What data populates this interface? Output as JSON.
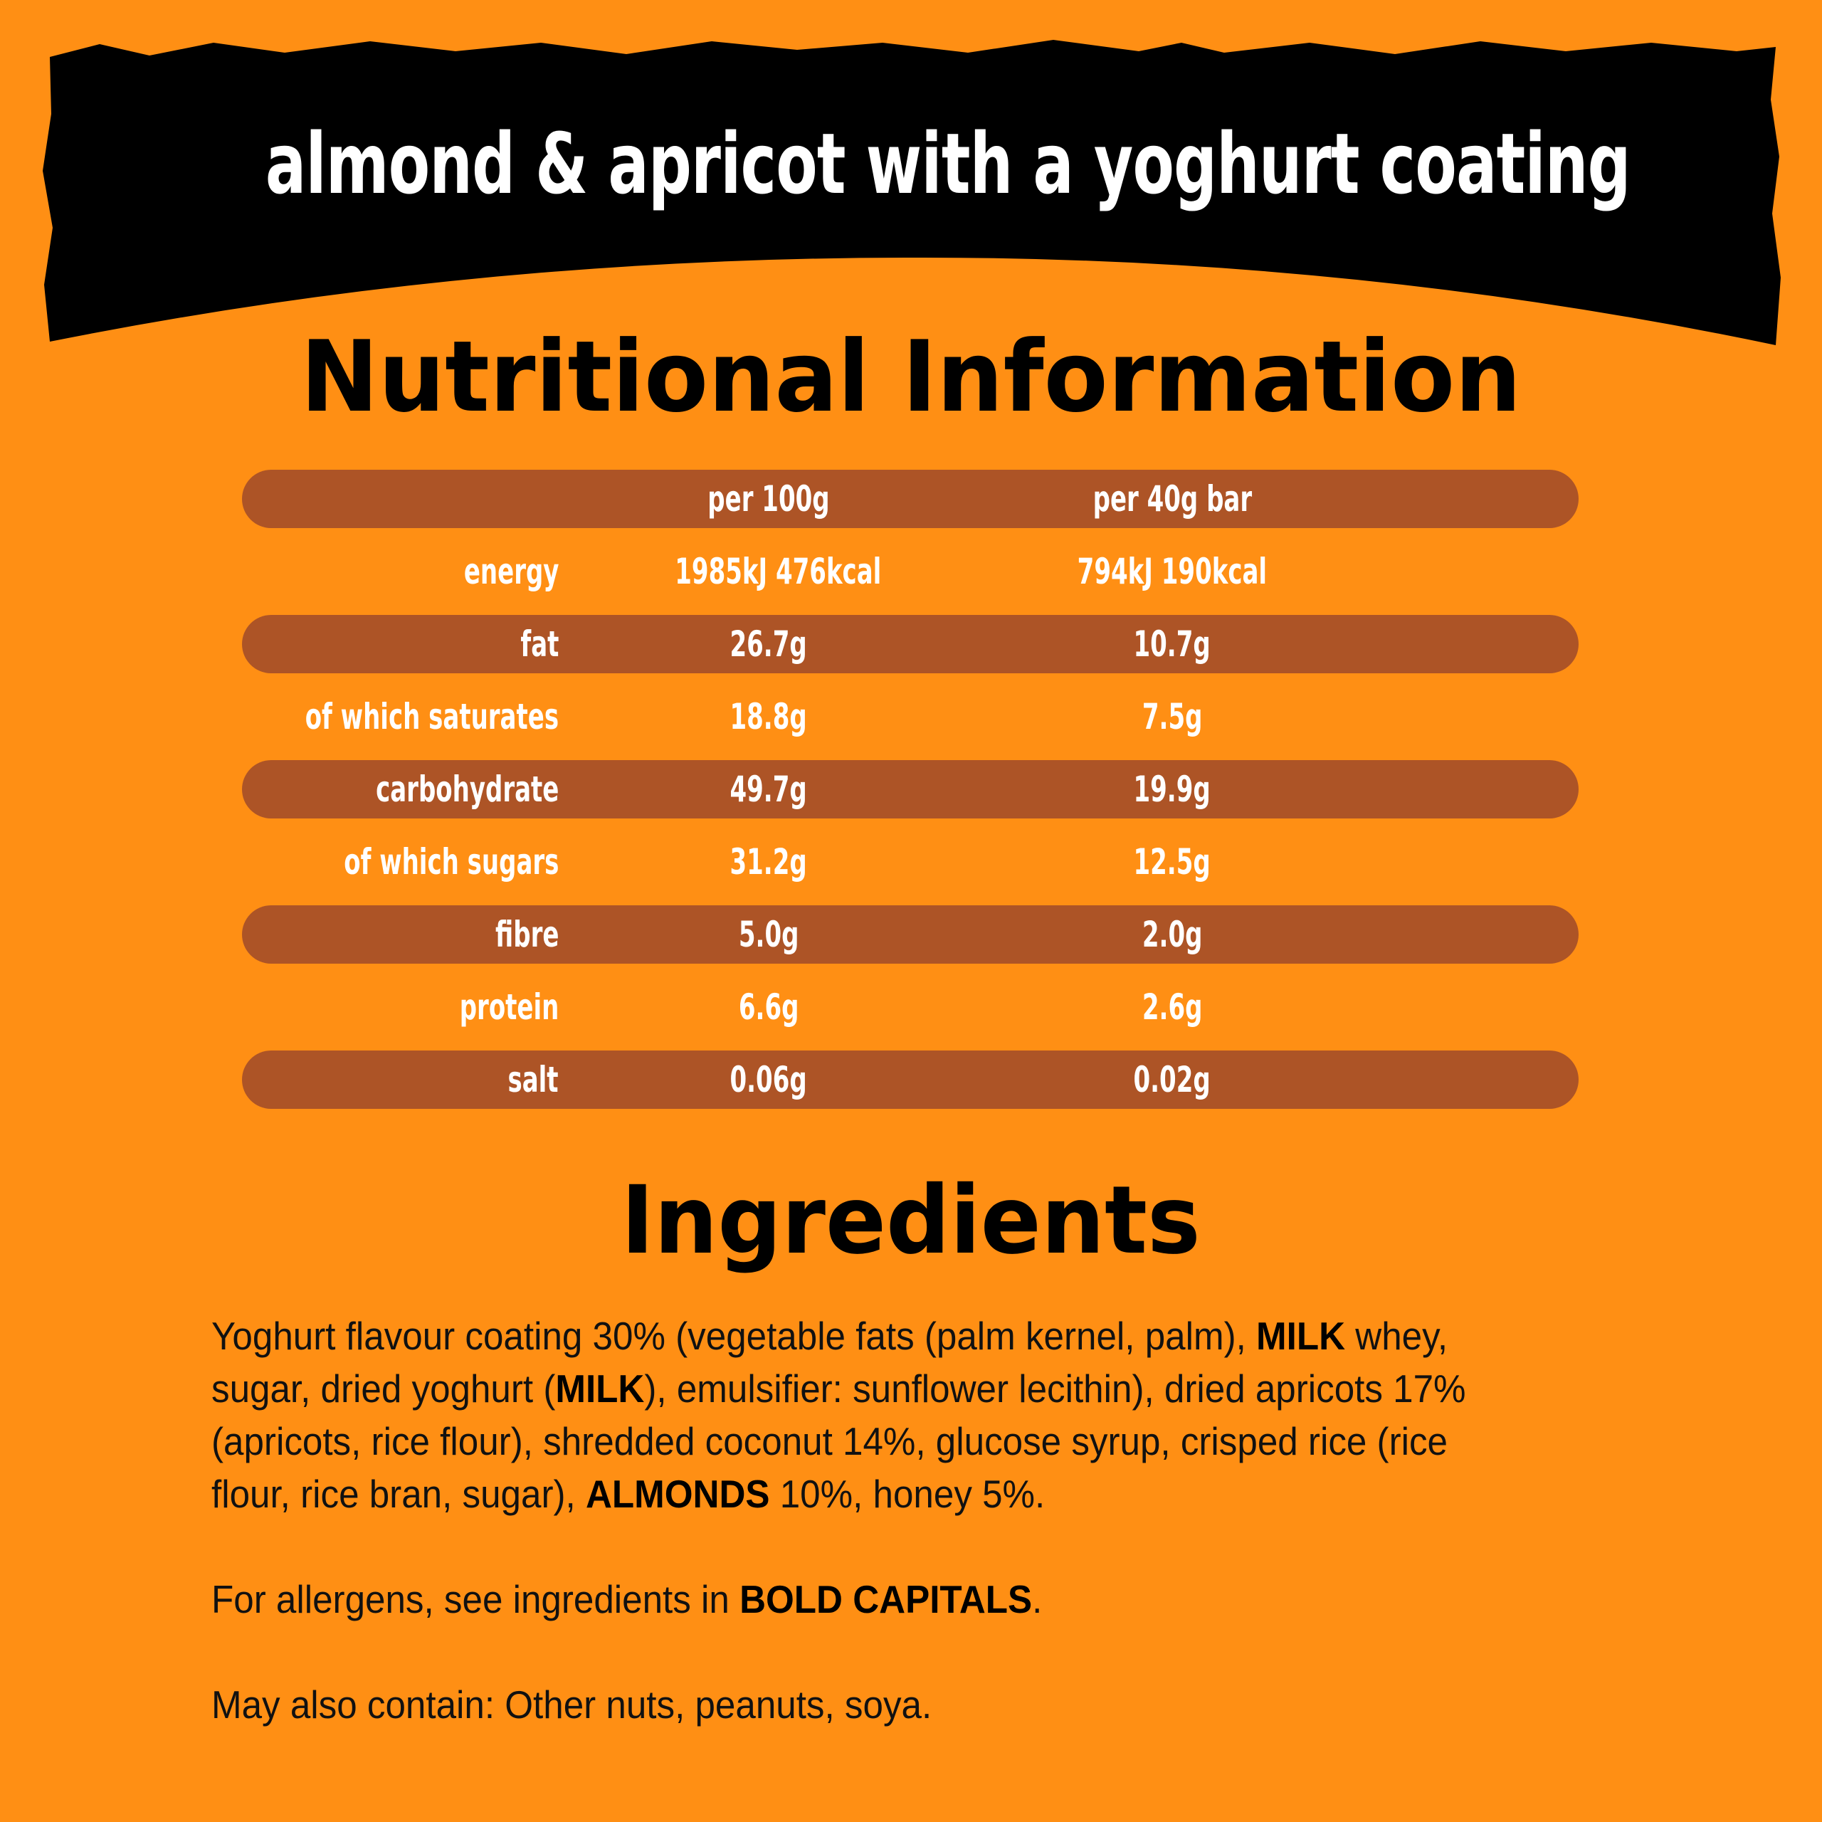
{
  "banner": {
    "title": "almond & apricot with a yoghurt coating"
  },
  "colors": {
    "background": "#FF8F14",
    "row_band": "#AD5426",
    "banner": "#000000",
    "text_light": "#FFFFFF"
  },
  "nutrition": {
    "title": "Nutritional Information",
    "columns": [
      "",
      "per 100g",
      "per 40g bar"
    ],
    "rows": [
      {
        "label": "energy",
        "per_100g": "1985kJ 476kcal",
        "per_bar": "794kJ 190kcal"
      },
      {
        "label": "fat",
        "per_100g": "26.7g",
        "per_bar": "10.7g"
      },
      {
        "label": "of which saturates",
        "per_100g": "18.8g",
        "per_bar": "7.5g"
      },
      {
        "label": "carbohydrate",
        "per_100g": "49.7g",
        "per_bar": "19.9g"
      },
      {
        "label": "of which sugars",
        "per_100g": "31.2g",
        "per_bar": "12.5g"
      },
      {
        "label": "fibre",
        "per_100g": "5.0g",
        "per_bar": "2.0g"
      },
      {
        "label": "protein",
        "per_100g": "6.6g",
        "per_bar": "2.6g"
      },
      {
        "label": "salt",
        "per_100g": "0.06g",
        "per_bar": "0.02g"
      }
    ]
  },
  "ingredients": {
    "title": "Ingredients",
    "l1a": "Yoghurt flavour coating 30% (vegetable fats (palm kernel, palm), ",
    "l1b": "MILK",
    "l1c": " whey,",
    "l2a": "sugar, dried yoghurt (",
    "l2b": "MILK",
    "l2c": "), emulsifier: sunflower lecithin), dried apricots 17%",
    "l3": "(apricots, rice flour), shredded coconut 14%, glucose syrup, crisped rice (rice",
    "l4a": "flour, rice bran, sugar), ",
    "l4b": "ALMONDS",
    "l4c": " 10%, honey 5%.",
    "allergen_a": "For allergens, see ingredients in ",
    "allergen_b": "BOLD CAPITALS",
    "allergen_c": ".",
    "may_contain": "May also contain: Other nuts, peanuts, soya."
  }
}
